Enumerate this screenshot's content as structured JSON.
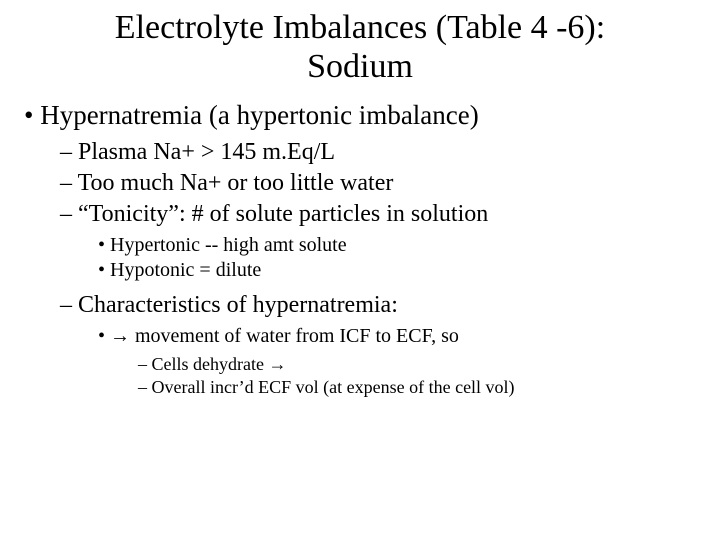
{
  "title_line1": "Electrolyte Imbalances (Table 4 -6):",
  "title_line2": "Sodium",
  "l1_a": "• Hypernatremia (a hypertonic imbalance)",
  "l2_a": "– Plasma Na+ > 145 m.Eq/L",
  "l2_b": "– Too much Na+ or too little water",
  "l2_c": "– “Tonicity”: # of solute particles in solution",
  "l3_a": "• Hypertonic -- high amt solute",
  "l3_b": "• Hypotonic = dilute",
  "l2_d": "– Characteristics of hypernatremia:",
  "l3_c": "• → movement of water from ICF to ECF, so",
  "l4_a": "– Cells dehydrate →",
  "l4_b": "– Overall incr’d ECF vol (at expense of the cell vol)",
  "colors": {
    "text": "#000000",
    "background": "#ffffff"
  },
  "typography": {
    "family": "Times New Roman",
    "title_pt": 34,
    "l1_pt": 27,
    "l2_pt": 24,
    "l3_pt": 20,
    "l4_pt": 18
  }
}
